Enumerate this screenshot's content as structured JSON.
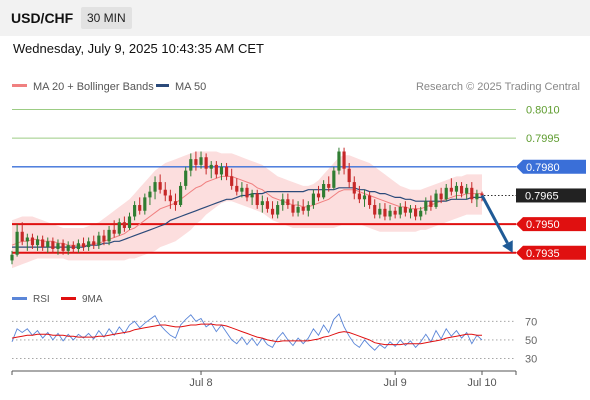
{
  "header": {
    "symbol": "USD/CHF",
    "timeframe": "30 MIN",
    "datetime": "Wednesday, July 9, 2025 10:43:35 AM CET"
  },
  "legend": {
    "ma20_label": "MA 20 + Bollinger Bands",
    "ma50_label": "MA 50",
    "copyright": "Research © 2025 Trading Central"
  },
  "rsi_legend": {
    "rsi_label": "RSI",
    "ma_label": "9MA"
  },
  "colors": {
    "bull": "#2f7d32",
    "bear": "#c62828",
    "ma20": "#f08080",
    "ma50": "#2b4a7a",
    "band_fill": "#fcdede",
    "resistance": "#3a6fd8",
    "support": "#e01010",
    "target": "#9ccc84",
    "arrow": "#1f5a96",
    "rsi": "#5b86d8",
    "rsi_ma": "#e01010"
  },
  "chart_data": {
    "type": "candlestick",
    "price_ylim": [
      0.7926,
      0.8016
    ],
    "levels": [
      {
        "value": 0.801,
        "label": "0.8010",
        "kind": "target"
      },
      {
        "value": 0.7995,
        "label": "0.7995",
        "kind": "target"
      },
      {
        "value": 0.798,
        "label": "0.7980",
        "kind": "resistance"
      },
      {
        "value": 0.7965,
        "label": "0.7965",
        "kind": "last"
      },
      {
        "value": 0.795,
        "label": "0.7950",
        "kind": "support"
      },
      {
        "value": 0.7935,
        "label": "0.7935",
        "kind": "support"
      }
    ],
    "x_ticks": [
      "Jul 8",
      "Jul 9",
      "Jul 10"
    ],
    "candles": [
      [
        0.7931,
        0.7936,
        0.7929,
        0.7934
      ],
      [
        0.7934,
        0.795,
        0.7933,
        0.7946
      ],
      [
        0.7946,
        0.7951,
        0.7939,
        0.7941
      ],
      [
        0.7941,
        0.7945,
        0.7936,
        0.7943
      ],
      [
        0.7943,
        0.7945,
        0.7937,
        0.7939
      ],
      [
        0.7939,
        0.7944,
        0.7936,
        0.7942
      ],
      [
        0.7942,
        0.7944,
        0.7936,
        0.7938
      ],
      [
        0.7938,
        0.7943,
        0.7935,
        0.7941
      ],
      [
        0.7941,
        0.7943,
        0.7935,
        0.7937
      ],
      [
        0.7937,
        0.7942,
        0.7934,
        0.794
      ],
      [
        0.794,
        0.7942,
        0.7934,
        0.7936
      ],
      [
        0.7936,
        0.7941,
        0.7934,
        0.7939
      ],
      [
        0.7939,
        0.7941,
        0.7935,
        0.7937
      ],
      [
        0.7937,
        0.7942,
        0.7935,
        0.794
      ],
      [
        0.794,
        0.7943,
        0.7936,
        0.7938
      ],
      [
        0.7938,
        0.7943,
        0.7936,
        0.7941
      ],
      [
        0.7941,
        0.7944,
        0.7937,
        0.7939
      ],
      [
        0.7939,
        0.7946,
        0.7937,
        0.7944
      ],
      [
        0.7944,
        0.7947,
        0.7939,
        0.7941
      ],
      [
        0.7941,
        0.7949,
        0.7939,
        0.7947
      ],
      [
        0.7947,
        0.7952,
        0.7943,
        0.7945
      ],
      [
        0.7945,
        0.7953,
        0.7944,
        0.7951
      ],
      [
        0.7951,
        0.7954,
        0.7946,
        0.7948
      ],
      [
        0.7948,
        0.7956,
        0.7947,
        0.7954
      ],
      [
        0.7954,
        0.7962,
        0.7952,
        0.796
      ],
      [
        0.796,
        0.7964,
        0.7955,
        0.7957
      ],
      [
        0.7957,
        0.7966,
        0.7955,
        0.7964
      ],
      [
        0.7964,
        0.797,
        0.796,
        0.7967
      ],
      [
        0.7967,
        0.7975,
        0.7963,
        0.7972
      ],
      [
        0.7972,
        0.7976,
        0.7966,
        0.7968
      ],
      [
        0.7968,
        0.7972,
        0.7962,
        0.7965
      ],
      [
        0.7965,
        0.7968,
        0.7958,
        0.7962
      ],
      [
        0.7962,
        0.7966,
        0.7957,
        0.796
      ],
      [
        0.796,
        0.7972,
        0.7959,
        0.797
      ],
      [
        0.797,
        0.798,
        0.7968,
        0.7978
      ],
      [
        0.7978,
        0.7987,
        0.7975,
        0.7984
      ],
      [
        0.7984,
        0.7988,
        0.7978,
        0.7981
      ],
      [
        0.7981,
        0.7988,
        0.7979,
        0.7985
      ],
      [
        0.7985,
        0.7987,
        0.7976,
        0.7979
      ],
      [
        0.7979,
        0.7983,
        0.7974,
        0.7981
      ],
      [
        0.7981,
        0.7983,
        0.7974,
        0.7976
      ],
      [
        0.7976,
        0.7982,
        0.7973,
        0.798
      ],
      [
        0.798,
        0.7982,
        0.7973,
        0.7975
      ],
      [
        0.7975,
        0.7979,
        0.7968,
        0.797
      ],
      [
        0.797,
        0.7974,
        0.7965,
        0.7967
      ],
      [
        0.7967,
        0.7972,
        0.7964,
        0.7969
      ],
      [
        0.7969,
        0.7971,
        0.7962,
        0.7964
      ],
      [
        0.7964,
        0.7968,
        0.796,
        0.7966
      ],
      [
        0.7966,
        0.7968,
        0.7958,
        0.796
      ],
      [
        0.796,
        0.7965,
        0.7956,
        0.7962
      ],
      [
        0.7962,
        0.7964,
        0.7956,
        0.7958
      ],
      [
        0.7958,
        0.7962,
        0.7953,
        0.7955
      ],
      [
        0.7955,
        0.7962,
        0.7953,
        0.796
      ],
      [
        0.796,
        0.7966,
        0.7957,
        0.7963
      ],
      [
        0.7963,
        0.7966,
        0.7958,
        0.796
      ],
      [
        0.796,
        0.7963,
        0.7954,
        0.7956
      ],
      [
        0.7956,
        0.7962,
        0.7954,
        0.7959
      ],
      [
        0.7959,
        0.7963,
        0.7955,
        0.7957
      ],
      [
        0.7957,
        0.7962,
        0.7954,
        0.796
      ],
      [
        0.796,
        0.7968,
        0.7958,
        0.7966
      ],
      [
        0.7966,
        0.797,
        0.7962,
        0.7964
      ],
      [
        0.7964,
        0.7973,
        0.7963,
        0.7971
      ],
      [
        0.7971,
        0.7975,
        0.7967,
        0.7969
      ],
      [
        0.7969,
        0.798,
        0.7968,
        0.7978
      ],
      [
        0.7978,
        0.799,
        0.7976,
        0.7988
      ],
      [
        0.7988,
        0.799,
        0.7976,
        0.7979
      ],
      [
        0.7979,
        0.7982,
        0.7969,
        0.7972
      ],
      [
        0.7972,
        0.7975,
        0.7963,
        0.7966
      ],
      [
        0.7966,
        0.797,
        0.7961,
        0.7963
      ],
      [
        0.7963,
        0.7968,
        0.7959,
        0.7965
      ],
      [
        0.7965,
        0.7967,
        0.7958,
        0.796
      ],
      [
        0.796,
        0.7963,
        0.7953,
        0.7955
      ],
      [
        0.7955,
        0.7961,
        0.7953,
        0.7958
      ],
      [
        0.7958,
        0.7961,
        0.7952,
        0.7954
      ],
      [
        0.7954,
        0.796,
        0.7952,
        0.7957
      ],
      [
        0.7957,
        0.7959,
        0.7953,
        0.7955
      ],
      [
        0.7955,
        0.7961,
        0.7953,
        0.7959
      ],
      [
        0.7959,
        0.7962,
        0.7954,
        0.7956
      ],
      [
        0.7956,
        0.796,
        0.7953,
        0.7958
      ],
      [
        0.7958,
        0.796,
        0.7952,
        0.7954
      ],
      [
        0.7954,
        0.7959,
        0.7952,
        0.7957
      ],
      [
        0.7957,
        0.7964,
        0.7955,
        0.7962
      ],
      [
        0.7962,
        0.7965,
        0.7957,
        0.7959
      ],
      [
        0.7959,
        0.7968,
        0.7958,
        0.7966
      ],
      [
        0.7966,
        0.7969,
        0.7961,
        0.7963
      ],
      [
        0.7963,
        0.7971,
        0.7962,
        0.7969
      ],
      [
        0.7969,
        0.7974,
        0.7965,
        0.7967
      ],
      [
        0.7967,
        0.7972,
        0.7963,
        0.797
      ],
      [
        0.797,
        0.7972,
        0.7964,
        0.7966
      ],
      [
        0.7966,
        0.7971,
        0.7963,
        0.7969
      ],
      [
        0.7969,
        0.7972,
        0.7961,
        0.7963
      ],
      [
        0.7963,
        0.7968,
        0.7959,
        0.7966
      ],
      [
        0.7966,
        0.7967,
        0.7962,
        0.7965
      ]
    ],
    "ma20": [
      0.7939,
      0.794,
      0.7941,
      0.7941,
      0.7942,
      0.7942,
      0.7941,
      0.7941,
      0.7941,
      0.794,
      0.794,
      0.7939,
      0.7939,
      0.7939,
      0.7939,
      0.7939,
      0.794,
      0.794,
      0.7941,
      0.7942,
      0.7943,
      0.7944,
      0.7945,
      0.7947,
      0.7948,
      0.795,
      0.7952,
      0.7954,
      0.7956,
      0.7958,
      0.7959,
      0.796,
      0.7961,
      0.7963,
      0.7965,
      0.7967,
      0.7969,
      0.797,
      0.7972,
      0.7973,
      0.7974,
      0.7975,
      0.7975,
      0.7975,
      0.7974,
      0.7973,
      0.7972,
      0.7971,
      0.7969,
      0.7968,
      0.7966,
      0.7964,
      0.7963,
      0.7962,
      0.7961,
      0.796,
      0.796,
      0.7959,
      0.7959,
      0.796,
      0.7961,
      0.7962,
      0.7963,
      0.7965,
      0.7967,
      0.7968,
      0.7968,
      0.7968,
      0.7967,
      0.7966,
      0.7965,
      0.7964,
      0.7963,
      0.7962,
      0.7961,
      0.796,
      0.7959,
      0.7959,
      0.7958,
      0.7958,
      0.7958,
      0.7959,
      0.796,
      0.7961,
      0.7962,
      0.7963,
      0.7964,
      0.7965,
      0.7965,
      0.7966,
      0.7966,
      0.7966,
      0.7966
    ],
    "ma50": [
      0.7938,
      0.7938,
      0.7938,
      0.7938,
      0.7938,
      0.7938,
      0.7938,
      0.7938,
      0.7938,
      0.7938,
      0.7938,
      0.7938,
      0.7938,
      0.7938,
      0.7938,
      0.7939,
      0.7939,
      0.7939,
      0.794,
      0.794,
      0.7941,
      0.7941,
      0.7942,
      0.7943,
      0.7944,
      0.7945,
      0.7946,
      0.7947,
      0.7948,
      0.7949,
      0.795,
      0.7952,
      0.7953,
      0.7954,
      0.7955,
      0.7956,
      0.7957,
      0.7958,
      0.7959,
      0.796,
      0.7961,
      0.7962,
      0.7963,
      0.7963,
      0.7964,
      0.7965,
      0.7965,
      0.7966,
      0.7966,
      0.7966,
      0.7967,
      0.7967,
      0.7967,
      0.7967,
      0.7967,
      0.7967,
      0.7967,
      0.7967,
      0.7968,
      0.7968,
      0.7968,
      0.7968,
      0.7968,
      0.7968,
      0.7969,
      0.7969,
      0.7969,
      0.7969,
      0.7968,
      0.7968,
      0.7967,
      0.7967,
      0.7966,
      0.7966,
      0.7965,
      0.7964,
      0.7964,
      0.7963,
      0.7963,
      0.7962,
      0.7962,
      0.7962,
      0.7962,
      0.7962,
      0.7962,
      0.7962,
      0.7963,
      0.7963,
      0.7963,
      0.7963,
      0.7964,
      0.7964,
      0.7964
    ],
    "band_upper": [
      0.7952,
      0.7953,
      0.7954,
      0.7954,
      0.7954,
      0.7953,
      0.7952,
      0.7951,
      0.795,
      0.7949,
      0.7948,
      0.7948,
      0.7948,
      0.7948,
      0.7948,
      0.7949,
      0.795,
      0.7951,
      0.7953,
      0.7955,
      0.7957,
      0.7959,
      0.7961,
      0.7963,
      0.7966,
      0.7969,
      0.7972,
      0.7975,
      0.7978,
      0.798,
      0.7982,
      0.7983,
      0.7984,
      0.7985,
      0.7986,
      0.7987,
      0.7988,
      0.7988,
      0.7988,
      0.7988,
      0.7988,
      0.7987,
      0.7987,
      0.7987,
      0.7986,
      0.7985,
      0.7984,
      0.7983,
      0.7982,
      0.7981,
      0.7979,
      0.7977,
      0.7975,
      0.7974,
      0.7973,
      0.7972,
      0.7971,
      0.797,
      0.797,
      0.7971,
      0.7973,
      0.7976,
      0.7979,
      0.7982,
      0.7985,
      0.7986,
      0.7986,
      0.7985,
      0.7984,
      0.7983,
      0.7982,
      0.798,
      0.7978,
      0.7976,
      0.7974,
      0.7972,
      0.797,
      0.7969,
      0.7968,
      0.7968,
      0.7968,
      0.7969,
      0.797,
      0.7971,
      0.7972,
      0.7973,
      0.7974,
      0.7975,
      0.7975,
      0.7976,
      0.7976,
      0.7976,
      0.7976
    ],
    "band_lower": [
      0.7927,
      0.7928,
      0.7929,
      0.793,
      0.7931,
      0.7932,
      0.7932,
      0.7932,
      0.7932,
      0.7932,
      0.7932,
      0.7931,
      0.7931,
      0.7931,
      0.7931,
      0.7931,
      0.7931,
      0.7931,
      0.7931,
      0.7931,
      0.7931,
      0.7931,
      0.7931,
      0.7932,
      0.7932,
      0.7933,
      0.7934,
      0.7935,
      0.7936,
      0.7938,
      0.7939,
      0.794,
      0.7941,
      0.7943,
      0.7945,
      0.7947,
      0.795,
      0.7952,
      0.7955,
      0.7957,
      0.7959,
      0.7961,
      0.7962,
      0.7962,
      0.7961,
      0.796,
      0.7959,
      0.7958,
      0.7957,
      0.7956,
      0.7954,
      0.7952,
      0.7951,
      0.795,
      0.7949,
      0.7948,
      0.7948,
      0.7948,
      0.7948,
      0.7948,
      0.7948,
      0.7948,
      0.7948,
      0.7948,
      0.7949,
      0.795,
      0.795,
      0.795,
      0.795,
      0.7949,
      0.7948,
      0.7947,
      0.7946,
      0.7946,
      0.7946,
      0.7946,
      0.7946,
      0.7946,
      0.7946,
      0.7946,
      0.7947,
      0.7947,
      0.7948,
      0.7949,
      0.795,
      0.7951,
      0.7952,
      0.7953,
      0.7954,
      0.7955,
      0.7955,
      0.7955,
      0.7955
    ],
    "forecast_arrow": [
      [
        0,
        0.7965
      ],
      [
        6,
        0.7935
      ]
    ],
    "rsi": {
      "ylim": [
        22,
        80
      ],
      "ticks": [
        70,
        50,
        30
      ],
      "rsi_values": [
        48,
        62,
        58,
        62,
        55,
        60,
        52,
        58,
        50,
        57,
        49,
        56,
        50,
        56,
        52,
        57,
        51,
        60,
        53,
        62,
        55,
        64,
        57,
        66,
        70,
        63,
        68,
        72,
        76,
        66,
        60,
        55,
        52,
        66,
        72,
        77,
        70,
        73,
        64,
        68,
        59,
        66,
        58,
        50,
        46,
        53,
        45,
        52,
        44,
        52,
        45,
        42,
        52,
        58,
        50,
        44,
        52,
        46,
        52,
        62,
        55,
        66,
        58,
        72,
        78,
        64,
        54,
        46,
        42,
        50,
        44,
        39,
        45,
        41,
        48,
        43,
        50,
        44,
        49,
        42,
        48,
        56,
        48,
        60,
        51,
        62,
        54,
        60,
        52,
        58,
        46,
        55,
        50
      ],
      "ma_values": [
        52,
        53,
        54,
        55,
        55,
        56,
        56,
        56,
        55,
        55,
        55,
        54,
        54,
        53,
        53,
        53,
        53,
        54,
        54,
        55,
        56,
        57,
        58,
        59,
        61,
        62,
        63,
        64,
        65,
        66,
        66,
        65,
        64,
        64,
        65,
        66,
        66,
        67,
        67,
        67,
        66,
        66,
        65,
        63,
        61,
        59,
        57,
        55,
        53,
        52,
        50,
        49,
        48,
        49,
        49,
        49,
        49,
        49,
        49,
        50,
        51,
        53,
        54,
        56,
        58,
        59,
        58,
        56,
        54,
        52,
        50,
        47,
        46,
        45,
        45,
        45,
        45,
        46,
        46,
        46,
        46,
        47,
        48,
        49,
        50,
        52,
        53,
        54,
        55,
        56,
        56,
        55,
        55
      ]
    }
  }
}
